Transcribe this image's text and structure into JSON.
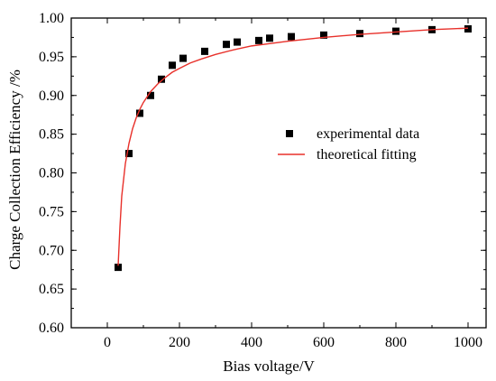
{
  "chart_data": {
    "type": "scatter",
    "title": "",
    "xlabel": "Bias voltage/V",
    "ylabel": "Charge Collection Efficiency /%",
    "xlim": [
      -100,
      1050
    ],
    "ylim": [
      0.6,
      1.0
    ],
    "xticks": [
      0,
      200,
      400,
      600,
      800,
      1000
    ],
    "yticks": [
      "0.60",
      "0.65",
      "0.70",
      "0.75",
      "0.80",
      "0.85",
      "0.90",
      "0.95",
      "1.00"
    ],
    "grid": false,
    "legend_position": "center-right",
    "series": [
      {
        "name": "experimental data",
        "kind": "markers",
        "marker": "square",
        "color": "#000000",
        "x": [
          30,
          60,
          90,
          120,
          150,
          180,
          210,
          270,
          330,
          360,
          420,
          450,
          510,
          600,
          700,
          800,
          900,
          1000
        ],
        "y": [
          0.678,
          0.825,
          0.877,
          0.9,
          0.921,
          0.939,
          0.948,
          0.957,
          0.966,
          0.969,
          0.971,
          0.974,
          0.976,
          0.978,
          0.98,
          0.983,
          0.985,
          0.986
        ]
      },
      {
        "name": "theoretical fitting",
        "kind": "line",
        "color": "#e8302a",
        "x": [
          30,
          35,
          40,
          50,
          60,
          70,
          80,
          90,
          100,
          120,
          140,
          160,
          180,
          200,
          230,
          260,
          300,
          350,
          400,
          450,
          500,
          600,
          700,
          800,
          900,
          1000
        ],
        "y": [
          0.68,
          0.73,
          0.77,
          0.812,
          0.838,
          0.857,
          0.871,
          0.882,
          0.891,
          0.905,
          0.915,
          0.923,
          0.93,
          0.935,
          0.942,
          0.947,
          0.953,
          0.959,
          0.964,
          0.967,
          0.97,
          0.975,
          0.979,
          0.982,
          0.985,
          0.987
        ]
      }
    ]
  }
}
